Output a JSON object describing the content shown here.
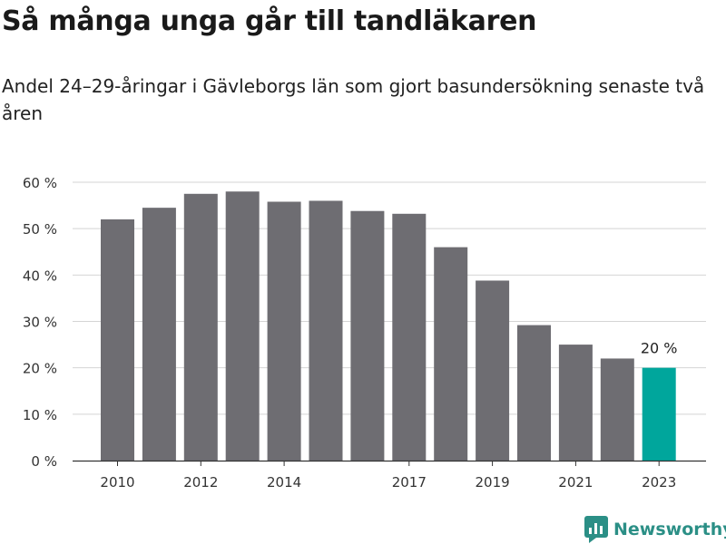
{
  "title": "Så många unga går till tandläkaren",
  "subtitle": "Andel 24–29-åringar i Gävleborgs län som gjort basundersökning senaste två åren",
  "brand": {
    "name": "Newsworthy",
    "icon": "newsworthy-logo-icon",
    "color": "#2b8f86"
  },
  "colors": {
    "bar": "#6e6d72",
    "highlight": "#00a69c",
    "grid": "#d4d4d4",
    "axis": "#333333"
  },
  "chart_data": {
    "type": "bar",
    "categories": [
      "2010",
      "2011",
      "2012",
      "2013",
      "2014",
      "2015",
      "2016",
      "2017",
      "2018",
      "2019",
      "2020",
      "2021",
      "2022",
      "2023"
    ],
    "values": [
      52,
      54.5,
      57.5,
      58,
      55.8,
      56,
      53.8,
      53.2,
      46,
      38.8,
      29.2,
      25,
      22,
      20
    ],
    "visible_x_ticks": [
      "2010",
      "2012",
      "2014",
      "2017",
      "2019",
      "2021",
      "2023"
    ],
    "y_ticks": [
      "0 %",
      "10 %",
      "20 %",
      "30 %",
      "40 %",
      "50 %",
      "60 %"
    ],
    "ylim": [
      0,
      60
    ],
    "highlight_category": "2023",
    "annotation": {
      "category": "2023",
      "text": "20 %"
    },
    "grid": true,
    "legend": "none"
  }
}
